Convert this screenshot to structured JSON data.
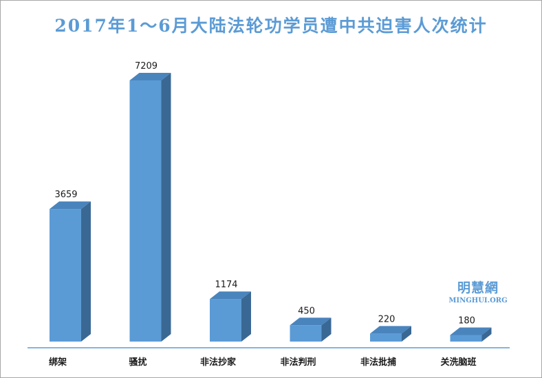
{
  "chart_data": {
    "type": "bar",
    "title": "2017年1～6月大陆法轮功学员遭中共迫害人次统计",
    "categories": [
      "绑架",
      "骚扰",
      "非法抄家",
      "非法判刑",
      "非法批捕",
      "关洗脑班"
    ],
    "values": [
      3659,
      7209,
      1174,
      450,
      220,
      180
    ],
    "value_labels": [
      "3659",
      "7209",
      "1174",
      "450",
      "220",
      "180"
    ],
    "ylim": [
      0,
      7500
    ],
    "grid": false,
    "legend": "none",
    "style": "3d-columns"
  },
  "colors": {
    "bar_front": "#5b9bd5",
    "bar_top": "#4a84bd",
    "bar_side": "#3a6894",
    "axis": "#5b9bd5",
    "title": "#5b9bd5",
    "frame": "#a6a6a6"
  },
  "watermark": {
    "cn": "明慧網",
    "en": "MINGHUI.ORG"
  }
}
